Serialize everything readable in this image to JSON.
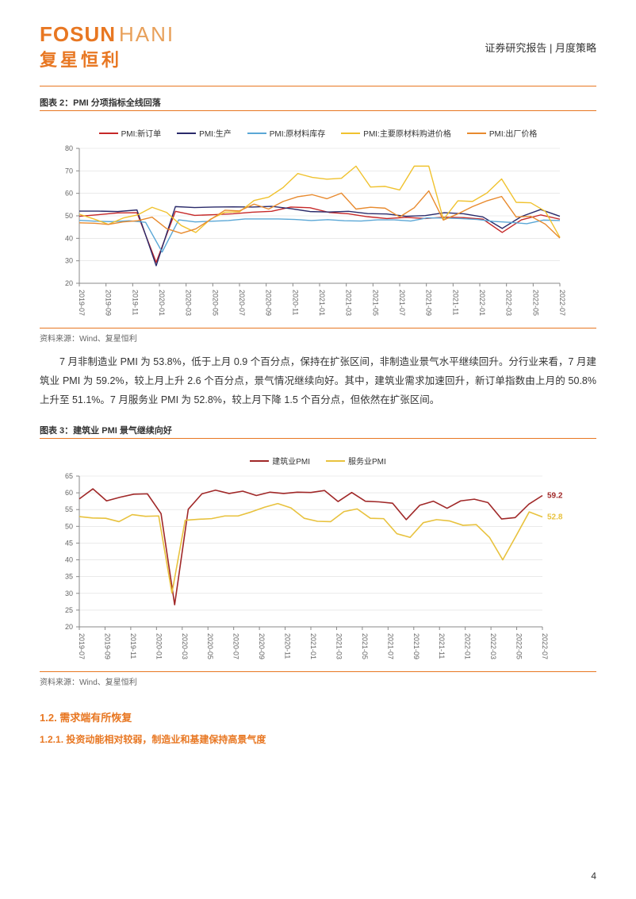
{
  "header": {
    "logo_en_1": "FOSUN",
    "logo_en_2": "HANI",
    "logo_cn": "复星恒利",
    "right": "证券研究报告  |  月度策略"
  },
  "chart1": {
    "title": "图表 2：PMI 分项指标全线回落",
    "source": "资料来源：Wind、复星恒利",
    "type": "line",
    "legend": [
      {
        "label": "PMI:新订单",
        "color": "#c62828"
      },
      {
        "label": "PMI:生产",
        "color": "#2a2a6a"
      },
      {
        "label": "PMI:原材料库存",
        "color": "#5aa7d6"
      },
      {
        "label": "PMI:主要原材料购进价格",
        "color": "#f0c22e"
      },
      {
        "label": "PMI:出厂价格",
        "color": "#e88a2e"
      }
    ],
    "ylim": [
      20,
      80
    ],
    "ytick_step": 10,
    "x_labels": [
      "2019-07",
      "2019-09",
      "2019-11",
      "2020-01",
      "2020-03",
      "2020-05",
      "2020-07",
      "2020-09",
      "2020-11",
      "2021-01",
      "2021-03",
      "2021-05",
      "2021-07",
      "2021-09",
      "2021-11",
      "2022-01",
      "2022-03",
      "2022-05",
      "2022-07"
    ],
    "line_width": 1.4,
    "grid_color": "#dddddd",
    "axis_color": "#888888",
    "bg": "#ffffff",
    "series": {
      "new_orders": [
        49.8,
        50.5,
        51.3,
        51.4,
        29.3,
        52.0,
        50.2,
        50.5,
        50.9,
        51.6,
        52.0,
        53.9,
        53.6,
        51.5,
        50.9,
        49.6,
        48.8,
        49.3,
        48.8,
        49.4,
        49.2,
        48.5,
        42.6,
        48.2,
        50.4,
        48.5
      ],
      "production": [
        52.1,
        52.1,
        51.9,
        52.6,
        27.8,
        54.1,
        53.7,
        53.9,
        54.0,
        53.9,
        54.2,
        53.2,
        51.9,
        51.7,
        52.0,
        51.0,
        50.8,
        49.8,
        50.1,
        51.4,
        50.9,
        49.5,
        44.4,
        49.7,
        52.8,
        49.8
      ],
      "raw_inv": [
        48.0,
        47.6,
        47.4,
        47.8,
        47.1,
        33.9,
        48.2,
        47.3,
        47.6,
        47.9,
        48.6,
        48.6,
        48.6,
        48.4,
        47.9,
        48.3,
        47.8,
        47.7,
        48.2,
        48.2,
        47.7,
        49.1,
        49.0,
        48.8,
        48.4,
        47.5,
        47.1,
        46.5,
        48.1,
        47.9
      ],
      "purchase_p": [
        50.7,
        48.6,
        46.2,
        49.0,
        50.4,
        53.8,
        51.5,
        45.7,
        42.6,
        48.5,
        51.6,
        51.8,
        56.8,
        58.3,
        62.6,
        68.8,
        67.1,
        66.3,
        66.7,
        72.1,
        62.8,
        63.1,
        61.5,
        72.1,
        72.1,
        48.4,
        56.7,
        56.4,
        60.2,
        66.4,
        56.0,
        55.8,
        52.0,
        40.4
      ],
      "ex_factory": [
        46.9,
        46.7,
        46.2,
        47.3,
        47.8,
        49.4,
        44.3,
        42.2,
        44.2,
        48.3,
        52.5,
        52.2,
        55.2,
        53.0,
        56.4,
        58.5,
        59.4,
        57.6,
        60.1,
        53.0,
        53.8,
        53.4,
        49.5,
        53.6,
        61.1,
        48.1,
        50.9,
        54.1,
        56.7,
        58.6,
        49.5,
        49.8,
        46.3,
        40.1
      ]
    }
  },
  "paragraph": "7 月非制造业 PMI 为 53.8%，低于上月 0.9 个百分点，保持在扩张区间，非制造业景气水平继续回升。分行业来看，7 月建筑业 PMI 为 59.2%，较上月上升 2.6 个百分点，景气情况继续向好。其中，建筑业需求加速回升，新订单指数由上月的 50.8%上升至 51.1%。7 月服务业 PMI 为 52.8%，较上月下降 1.5 个百分点，但依然在扩张区间。",
  "chart2": {
    "title": "图表 3：建筑业 PMI 景气继续向好",
    "source": "资料来源：Wind、复星恒利",
    "type": "line",
    "legend": [
      {
        "label": "建筑业PMI",
        "color": "#a02828"
      },
      {
        "label": "服务业PMI",
        "color": "#e8c23e"
      }
    ],
    "ylim": [
      20,
      65
    ],
    "ytick_step": 5,
    "x_labels": [
      "2019-07",
      "2019-09",
      "2019-11",
      "2020-01",
      "2020-03",
      "2020-05",
      "2020-07",
      "2020-09",
      "2020-11",
      "2021-01",
      "2021-03",
      "2021-05",
      "2021-07",
      "2021-09",
      "2021-11",
      "2022-01",
      "2022-03",
      "2022-05",
      "2022-07"
    ],
    "line_width": 1.6,
    "grid_color": "#dddddd",
    "axis_color": "#888888",
    "bg": "#ffffff",
    "end_labels": [
      {
        "text": "59.2",
        "color": "#a02828",
        "y": 59.2
      },
      {
        "text": "52.8",
        "color": "#e8c23e",
        "y": 52.8
      }
    ],
    "series": {
      "construction": [
        58.2,
        61.2,
        57.6,
        58.7,
        59.6,
        59.7,
        53.8,
        26.6,
        55.1,
        59.7,
        60.8,
        59.8,
        60.5,
        59.2,
        60.2,
        59.8,
        60.2,
        60.1,
        60.7,
        57.4,
        60.1,
        57.5,
        57.3,
        56.9,
        52.0,
        56.3,
        57.5,
        55.4,
        57.6,
        58.1,
        57.1,
        52.2,
        52.6,
        56.6,
        59.2
      ],
      "services": [
        52.9,
        52.5,
        52.4,
        51.4,
        53.5,
        53.0,
        53.1,
        30.1,
        51.8,
        52.1,
        52.3,
        53.1,
        53.1,
        54.3,
        55.7,
        56.8,
        55.5,
        52.4,
        51.5,
        51.4,
        54.4,
        55.2,
        52.4,
        52.3,
        47.8,
        46.7,
        51.1,
        52.0,
        51.6,
        50.3,
        50.5,
        46.7,
        40.0,
        47.1,
        54.3,
        52.8
      ]
    }
  },
  "sections": {
    "h1": "1.2. 需求端有所恢复",
    "h2": "1.2.1. 投资动能相对较弱，制造业和基建保持高景气度"
  },
  "page_number": "4"
}
